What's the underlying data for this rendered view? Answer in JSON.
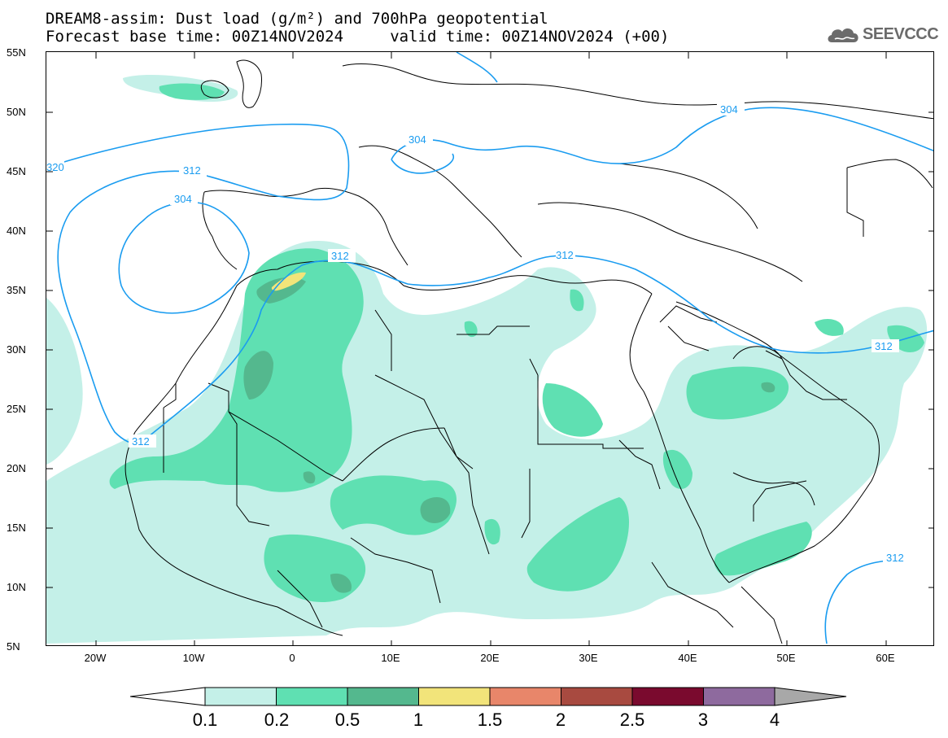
{
  "header": {
    "title_line1": "DREAM8-assim: Dust load (g/m²) and 700hPa geopotential",
    "title_line2": "Forecast base time: 00Z14NOV2024     valid time: 00Z14NOV2024 (+00)",
    "logo_text": "SEEVCCC"
  },
  "axes": {
    "lat_labels": [
      "55N",
      "50N",
      "45N",
      "40N",
      "35N",
      "30N",
      "25N",
      "20N",
      "15N",
      "10N",
      "5N"
    ],
    "lon_labels": [
      "20W",
      "10W",
      "0",
      "10E",
      "20E",
      "30E",
      "40E",
      "50E",
      "60E"
    ]
  },
  "contours": {
    "label_304_a": "304",
    "label_304_b": "304",
    "label_304_c": "304",
    "label_312_a": "312",
    "label_312_b": "312",
    "label_312_c": "312",
    "label_312_d": "312",
    "label_312_e": "312",
    "label_312_f": "312",
    "label_320": "320"
  },
  "colorbar": {
    "labels": [
      "0.1",
      "0.2",
      "0.5",
      "1",
      "1.5",
      "2",
      "2.5",
      "3",
      "4"
    ],
    "colors": [
      "#c4f0e8",
      "#5fe0b2",
      "#54b88e",
      "#f2e47a",
      "#e8866a",
      "#a84a40",
      "#7a0a2e",
      "#8e6a9e"
    ]
  },
  "colors": {
    "contour_line": "#1a9cf0",
    "land_border": "#000000"
  }
}
